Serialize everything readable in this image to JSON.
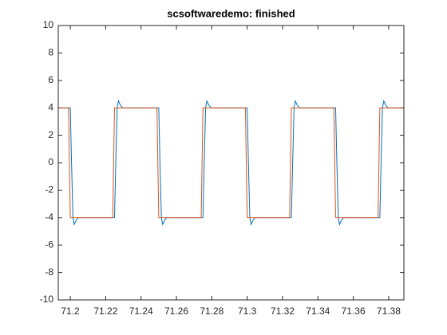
{
  "chart_data": {
    "type": "line",
    "title": "scsoftwaredemo: finished",
    "xlim": [
      71.1932,
      71.3886
    ],
    "xticks": [
      71.2,
      71.22,
      71.24,
      71.26,
      71.28,
      71.3,
      71.32,
      71.34,
      71.36,
      71.38
    ],
    "ylim": [
      -10,
      10
    ],
    "yticks": [
      -10,
      -8,
      -6,
      -4,
      -2,
      0,
      2,
      4,
      6,
      8,
      10
    ],
    "grid": false,
    "series": [
      {
        "color": "#0072bd",
        "x": [
          71.1932,
          71.2,
          71.2007,
          71.2015,
          71.2022,
          71.2033,
          71.2045,
          71.225,
          71.2257,
          71.2265,
          71.2272,
          71.2283,
          71.2295,
          71.25,
          71.2507,
          71.2515,
          71.2522,
          71.2533,
          71.2545,
          71.275,
          71.2757,
          71.2765,
          71.2772,
          71.2783,
          71.2795,
          71.3,
          71.3007,
          71.3015,
          71.3022,
          71.3033,
          71.3045,
          71.325,
          71.3257,
          71.3265,
          71.3272,
          71.3283,
          71.3295,
          71.35,
          71.3507,
          71.3515,
          71.3522,
          71.3533,
          71.3545,
          71.375,
          71.3757,
          71.3765,
          71.3772,
          71.3783,
          71.3795,
          71.3886
        ],
        "values": [
          4,
          4,
          0,
          -4,
          -4.5,
          -4.2,
          -4,
          -4,
          0,
          4,
          4.5,
          4.2,
          4,
          4,
          0,
          -4,
          -4.5,
          -4.2,
          -4,
          -4,
          0,
          4,
          4.5,
          4.2,
          4,
          4,
          0,
          -4,
          -4.5,
          -4.2,
          -4,
          -4,
          0,
          4,
          4.5,
          4.2,
          4,
          4,
          0,
          -4,
          -4.5,
          -4.2,
          -4,
          -4,
          0,
          4,
          4.5,
          4.2,
          4,
          4
        ]
      },
      {
        "color": "#d95319",
        "x": [
          71.1932,
          71.199,
          71.2,
          71.224,
          71.225,
          71.249,
          71.25,
          71.274,
          71.275,
          71.299,
          71.3,
          71.324,
          71.325,
          71.349,
          71.35,
          71.374,
          71.375,
          71.3886
        ],
        "values": [
          4,
          4,
          -4,
          -4,
          4,
          4,
          -4,
          -4,
          4,
          4,
          -4,
          -4,
          4,
          4,
          -4,
          -4,
          4,
          4
        ]
      }
    ]
  }
}
